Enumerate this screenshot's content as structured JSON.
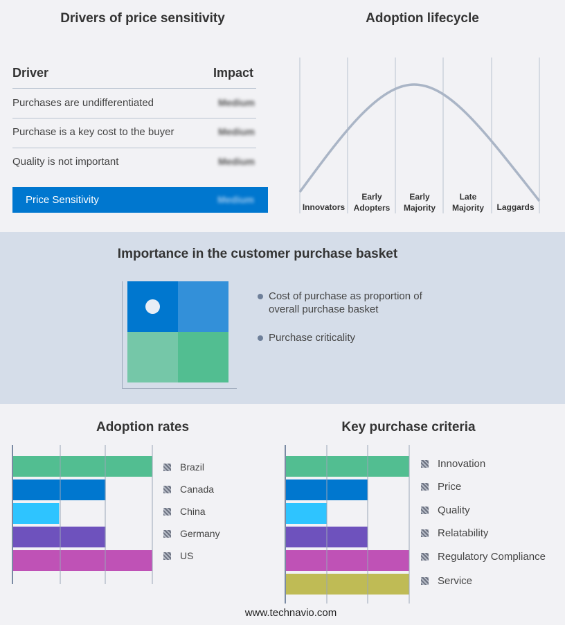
{
  "drivers": {
    "title": "Drivers of price sensitivity",
    "col_driver": "Driver",
    "col_impact": "Impact",
    "rows": [
      {
        "driver": "Purchases are undifferentiated",
        "impact": "Medium"
      },
      {
        "driver": "Purchase is a key cost to the buyer",
        "impact": "Medium"
      },
      {
        "driver": "Quality is not important",
        "impact": "Medium"
      }
    ],
    "summary": {
      "label": "Price Sensitivity",
      "impact": "Medium"
    },
    "accent": "#0077cf"
  },
  "lifecycle": {
    "title": "Adoption lifecycle",
    "stages": [
      "Innovators",
      "Early Adopters",
      "Early Majority",
      "Late Majority",
      "Laggards"
    ]
  },
  "basket": {
    "title": "Importance in the customer purchase basket",
    "bullets": [
      "Cost of purchase as proportion of overall purchase basket",
      "Purchase criticality"
    ],
    "colors": [
      "#0077cf",
      "#3390d9",
      "#75c7a8",
      "#52be91"
    ]
  },
  "chart_data": [
    {
      "type": "bar",
      "title": "Adoption rates",
      "orientation": "horizontal",
      "categories": [
        "Brazil",
        "Canada",
        "China",
        "Germany",
        "US"
      ],
      "values": [
        3,
        2,
        1,
        2,
        3
      ],
      "xlim": [
        0,
        3
      ],
      "grid": true,
      "legend": "right",
      "colors": [
        "#52be91",
        "#0077cf",
        "#2ec4ff",
        "#6e52bd",
        "#bf52b6"
      ]
    },
    {
      "type": "bar",
      "title": "Key purchase criteria",
      "orientation": "horizontal",
      "categories": [
        "Innovation",
        "Price",
        "Quality",
        "Relatability",
        "Regulatory Compliance",
        "Service"
      ],
      "values": [
        3,
        2,
        1,
        2,
        3,
        3
      ],
      "xlim": [
        0,
        3
      ],
      "grid": true,
      "legend": "right",
      "colors": [
        "#52be91",
        "#0077cf",
        "#2ec4ff",
        "#6e52bd",
        "#bf52b6",
        "#bfbb55"
      ]
    }
  ],
  "footer": "www.technavio.com"
}
